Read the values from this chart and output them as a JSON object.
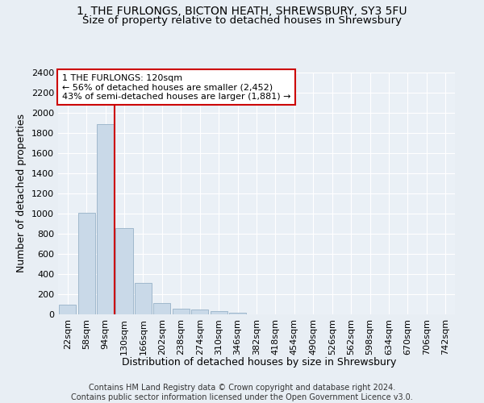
{
  "title_line1": "1, THE FURLONGS, BICTON HEATH, SHREWSBURY, SY3 5FU",
  "title_line2": "Size of property relative to detached houses in Shrewsbury",
  "xlabel": "Distribution of detached houses by size in Shrewsbury",
  "ylabel": "Number of detached properties",
  "bar_labels": [
    "22sqm",
    "58sqm",
    "94sqm",
    "130sqm",
    "166sqm",
    "202sqm",
    "238sqm",
    "274sqm",
    "310sqm",
    "346sqm",
    "382sqm",
    "418sqm",
    "454sqm",
    "490sqm",
    "526sqm",
    "562sqm",
    "598sqm",
    "634sqm",
    "670sqm",
    "706sqm",
    "742sqm"
  ],
  "bar_values": [
    95,
    1010,
    1890,
    860,
    315,
    115,
    60,
    50,
    30,
    20,
    0,
    0,
    0,
    0,
    0,
    0,
    0,
    0,
    0,
    0,
    0
  ],
  "bar_color": "#c9d9e8",
  "bar_edgecolor": "#a0b8cc",
  "vline_color": "#cc0000",
  "annotation_text": "1 THE FURLONGS: 120sqm\n← 56% of detached houses are smaller (2,452)\n43% of semi-detached houses are larger (1,881) →",
  "annotation_box_color": "#ffffff",
  "annotation_box_edgecolor": "#cc0000",
  "ylim": [
    0,
    2400
  ],
  "yticks": [
    0,
    200,
    400,
    600,
    800,
    1000,
    1200,
    1400,
    1600,
    1800,
    2000,
    2200,
    2400
  ],
  "bg_color": "#e8eef4",
  "plot_bg_color": "#eaf0f6",
  "footer_text": "Contains HM Land Registry data © Crown copyright and database right 2024.\nContains public sector information licensed under the Open Government Licence v3.0.",
  "title_fontsize": 10,
  "subtitle_fontsize": 9.5,
  "axis_label_fontsize": 9,
  "tick_fontsize": 8,
  "annotation_fontsize": 8,
  "footer_fontsize": 7
}
